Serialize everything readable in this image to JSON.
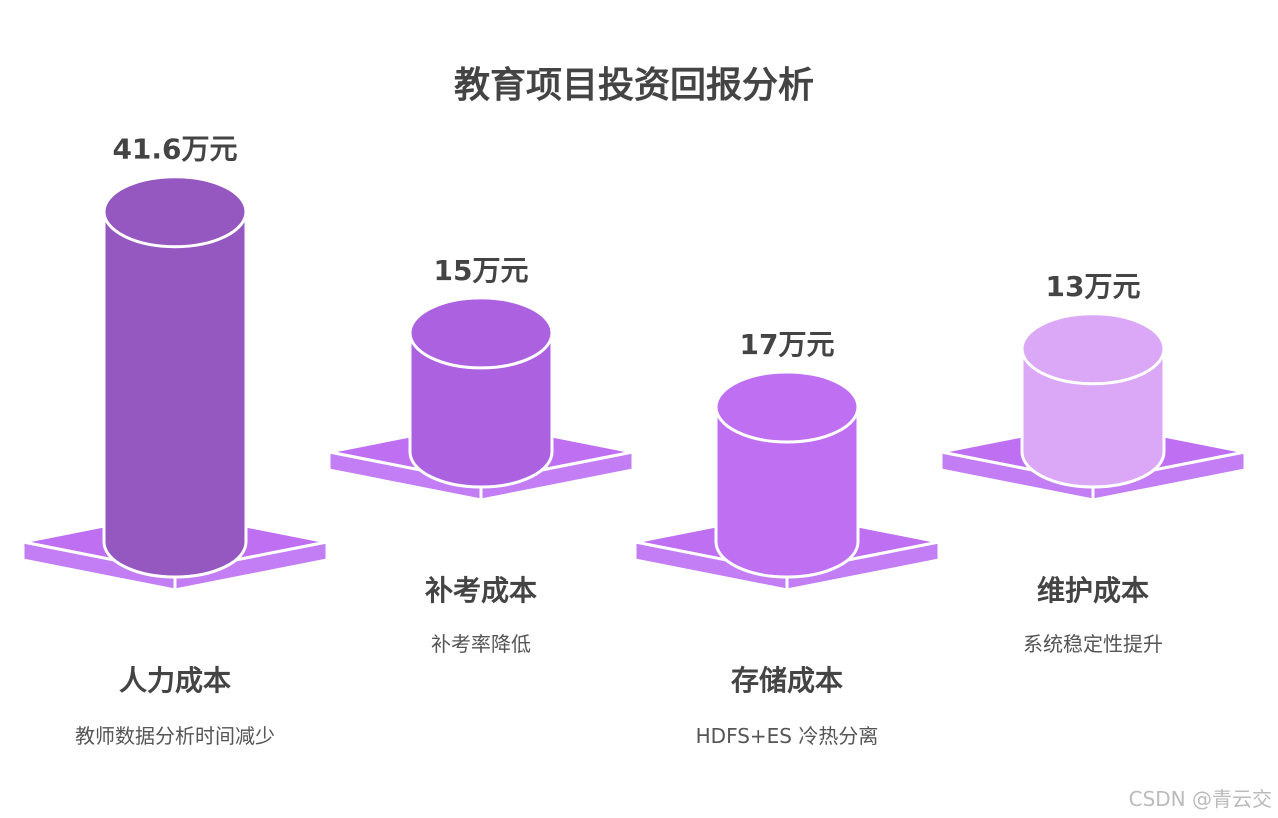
{
  "chart_data": {
    "type": "bar",
    "title": "教育项目投资回报分析",
    "categories": [
      "人力成本",
      "补考成本",
      "存储成本",
      "维护成本"
    ],
    "descriptions": [
      "教师数据分析时间减少",
      "补考率降低",
      "HDFS+ES 冷热分离",
      "系统稳定性提升"
    ],
    "values": [
      41.6,
      15,
      17,
      13
    ],
    "value_labels": [
      "41.6万元",
      "15万元",
      "17万元",
      "13万元"
    ],
    "unit": "万元",
    "colors": {
      "cylinders": [
        "#9558c0",
        "#ac62e0",
        "#bf70f2",
        "#dba8f8"
      ],
      "platform_top": "#bf6ff2",
      "platform_side": "#c37ef5",
      "outline": "#ffffff"
    }
  },
  "watermark": "CSDN @青云交"
}
